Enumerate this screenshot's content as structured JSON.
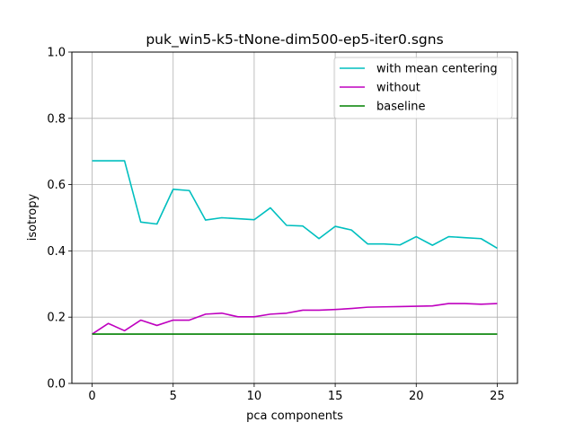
{
  "chart_data": {
    "type": "line",
    "title": "puk_win5-k5-tNone-dim500-ep5-iter0.sgns",
    "xlabel": "pca components",
    "ylabel": "isotropy",
    "xlim": [
      -1.25,
      26.25
    ],
    "ylim": [
      0.0,
      1.0
    ],
    "xticks": [
      0,
      5,
      10,
      15,
      20,
      25
    ],
    "xtick_labels": [
      "0",
      "5",
      "10",
      "15",
      "20",
      "25"
    ],
    "yticks": [
      0.0,
      0.2,
      0.4,
      0.6,
      0.8,
      1.0
    ],
    "ytick_labels": [
      "0.0",
      "0.2",
      "0.4",
      "0.6",
      "0.8",
      "1.0"
    ],
    "grid": true,
    "legend_position": "top-right",
    "x": [
      0,
      1,
      2,
      3,
      4,
      5,
      6,
      7,
      8,
      9,
      10,
      11,
      12,
      13,
      14,
      15,
      16,
      17,
      18,
      19,
      20,
      21,
      22,
      23,
      24,
      25
    ],
    "series": [
      {
        "name": "with mean centering",
        "color": "#00bfbf",
        "values": [
          0.672,
          0.672,
          0.672,
          0.487,
          0.481,
          0.586,
          0.582,
          0.493,
          0.5,
          0.497,
          0.494,
          0.53,
          0.477,
          0.475,
          0.437,
          0.474,
          0.463,
          0.421,
          0.421,
          0.418,
          0.443,
          0.417,
          0.443,
          0.44,
          0.437,
          0.408
        ]
      },
      {
        "name": "without",
        "color": "#bf00bf",
        "values": [
          0.149,
          0.181,
          0.159,
          0.191,
          0.175,
          0.191,
          0.191,
          0.209,
          0.212,
          0.201,
          0.201,
          0.209,
          0.212,
          0.221,
          0.221,
          0.223,
          0.226,
          0.23,
          0.231,
          0.232,
          0.233,
          0.234,
          0.241,
          0.241,
          0.239,
          0.241
        ]
      },
      {
        "name": "baseline",
        "color": "#008000",
        "values": [
          0.149,
          0.149,
          0.149,
          0.149,
          0.149,
          0.149,
          0.149,
          0.149,
          0.149,
          0.149,
          0.149,
          0.149,
          0.149,
          0.149,
          0.149,
          0.149,
          0.149,
          0.149,
          0.149,
          0.149,
          0.149,
          0.149,
          0.149,
          0.149,
          0.149,
          0.149
        ]
      }
    ]
  }
}
